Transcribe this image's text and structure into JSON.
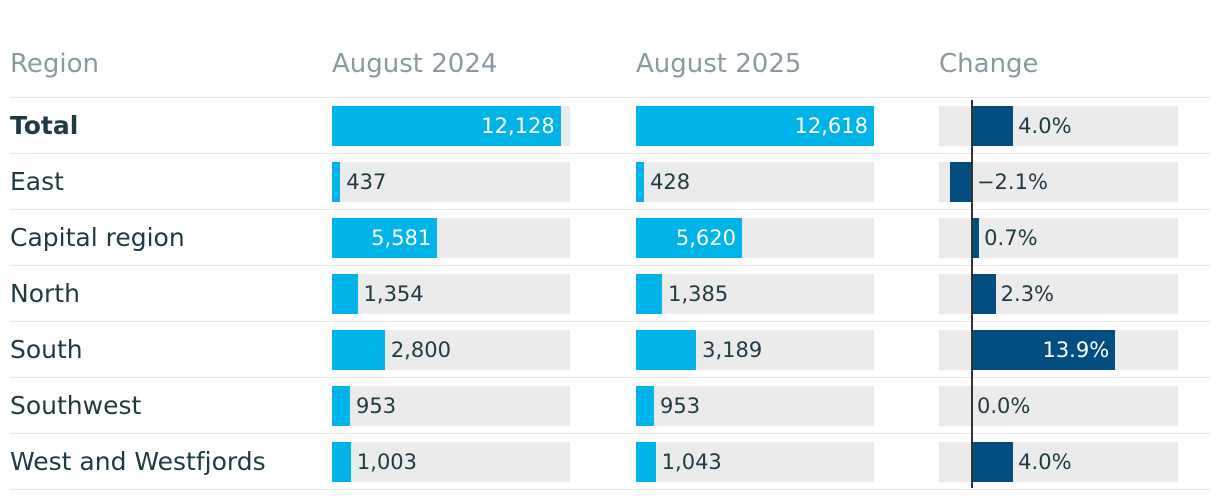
{
  "columns": [
    "Region",
    "August 2024",
    "August 2025",
    "Change"
  ],
  "colors": {
    "value_bar": "#00b4ea",
    "change_bar": "#004e82",
    "track": "#ebebeb",
    "text_dark": "#1e3a44",
    "header_text": "#8a9aa2",
    "label_on_bar": "#ffffff"
  },
  "chart_data": {
    "type": "table",
    "value_axis_max": 12618,
    "change_axis_range": [
      -3.2,
      20
    ],
    "rows": [
      {
        "region": "Total",
        "bold": true,
        "aug2024": 12128,
        "aug2024_label": "12,128",
        "aug2025": 12618,
        "aug2025_label": "12,618",
        "change": 4.0,
        "change_label": "4.0%"
      },
      {
        "region": "East",
        "aug2024": 437,
        "aug2024_label": "437",
        "aug2025": 428,
        "aug2025_label": "428",
        "change": -2.1,
        "change_label": "−2.1%"
      },
      {
        "region": "Capital region",
        "aug2024": 5581,
        "aug2024_label": "5,581",
        "aug2025": 5620,
        "aug2025_label": "5,620",
        "change": 0.7,
        "change_label": "0.7%"
      },
      {
        "region": "North",
        "aug2024": 1354,
        "aug2024_label": "1,354",
        "aug2025": 1385,
        "aug2025_label": "1,385",
        "change": 2.3,
        "change_label": "2.3%"
      },
      {
        "region": "South",
        "aug2024": 2800,
        "aug2024_label": "2,800",
        "aug2025": 3189,
        "aug2025_label": "3,189",
        "change": 13.9,
        "change_label": "13.9%"
      },
      {
        "region": "Southwest",
        "aug2024": 953,
        "aug2024_label": "953",
        "aug2025": 953,
        "aug2025_label": "953",
        "change": 0.0,
        "change_label": "0.0%"
      },
      {
        "region": "West and Westfjords",
        "aug2024": 1003,
        "aug2024_label": "1,003",
        "aug2025": 1043,
        "aug2025_label": "1,043",
        "change": 4.0,
        "change_label": "4.0%"
      }
    ]
  }
}
